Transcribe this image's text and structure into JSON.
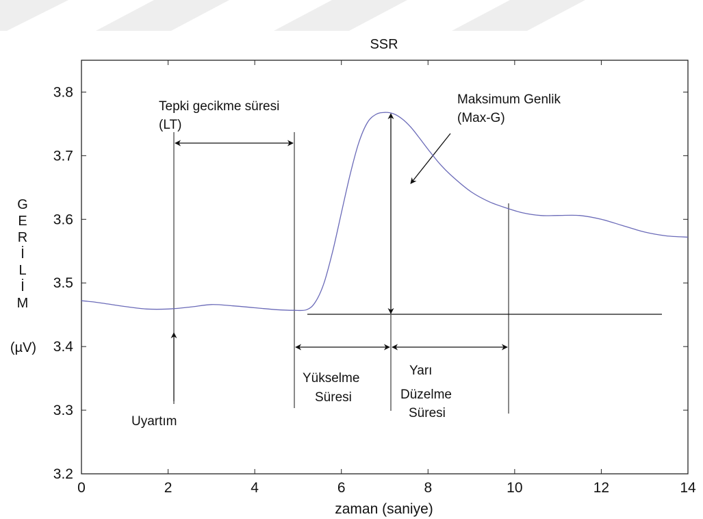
{
  "chart_data": {
    "type": "line",
    "title": "SSR",
    "xlabel": "zaman (saniye)",
    "ylabel_letters": [
      "G",
      "E",
      "R",
      "İ",
      "L",
      "İ",
      "M"
    ],
    "ylabel_unit": "(µV)",
    "xlim": [
      0,
      14
    ],
    "ylim": [
      3.2,
      3.85
    ],
    "xticks": [
      "0",
      "2",
      "4",
      "6",
      "8",
      "10",
      "12",
      "14"
    ],
    "yticks": [
      "3.2",
      "3.3",
      "3.4",
      "3.5",
      "3.6",
      "3.7",
      "3.8"
    ],
    "grid": false,
    "series": [
      {
        "color": "#6a6ab8",
        "x": [
          0,
          0.3,
          0.6,
          1.0,
          1.5,
          2.0,
          2.5,
          3.0,
          3.5,
          4.0,
          4.5,
          4.9,
          5.2,
          5.4,
          5.6,
          5.8,
          6.0,
          6.2,
          6.4,
          6.6,
          6.8,
          7.0,
          7.2,
          7.4,
          7.6,
          7.8,
          8.0,
          8.3,
          8.6,
          9.0,
          9.4,
          9.8,
          10.2,
          10.6,
          11.0,
          11.5,
          12.0,
          12.5,
          13.0,
          13.5,
          14.0
        ],
        "y": [
          3.472,
          3.47,
          3.467,
          3.463,
          3.459,
          3.459,
          3.462,
          3.466,
          3.464,
          3.461,
          3.458,
          3.457,
          3.458,
          3.47,
          3.5,
          3.55,
          3.61,
          3.67,
          3.72,
          3.752,
          3.765,
          3.768,
          3.766,
          3.758,
          3.745,
          3.728,
          3.71,
          3.685,
          3.665,
          3.643,
          3.628,
          3.618,
          3.61,
          3.606,
          3.606,
          3.606,
          3.6,
          3.59,
          3.58,
          3.574,
          3.572
        ]
      }
    ],
    "annotations": {
      "lt_label_1": "Tepki gecikme süresi",
      "lt_label_2": "(LT)",
      "maxg_label_1": "Maksimum Genlik",
      "maxg_label_2": "(Max-G)",
      "stim_label": "Uyartım",
      "rise_label_1": "Yükselme",
      "rise_label_2": "Süresi",
      "half_label_1": "Yarı",
      "half_label_2": "Düzelme",
      "half_label_3": "Süresi"
    }
  }
}
